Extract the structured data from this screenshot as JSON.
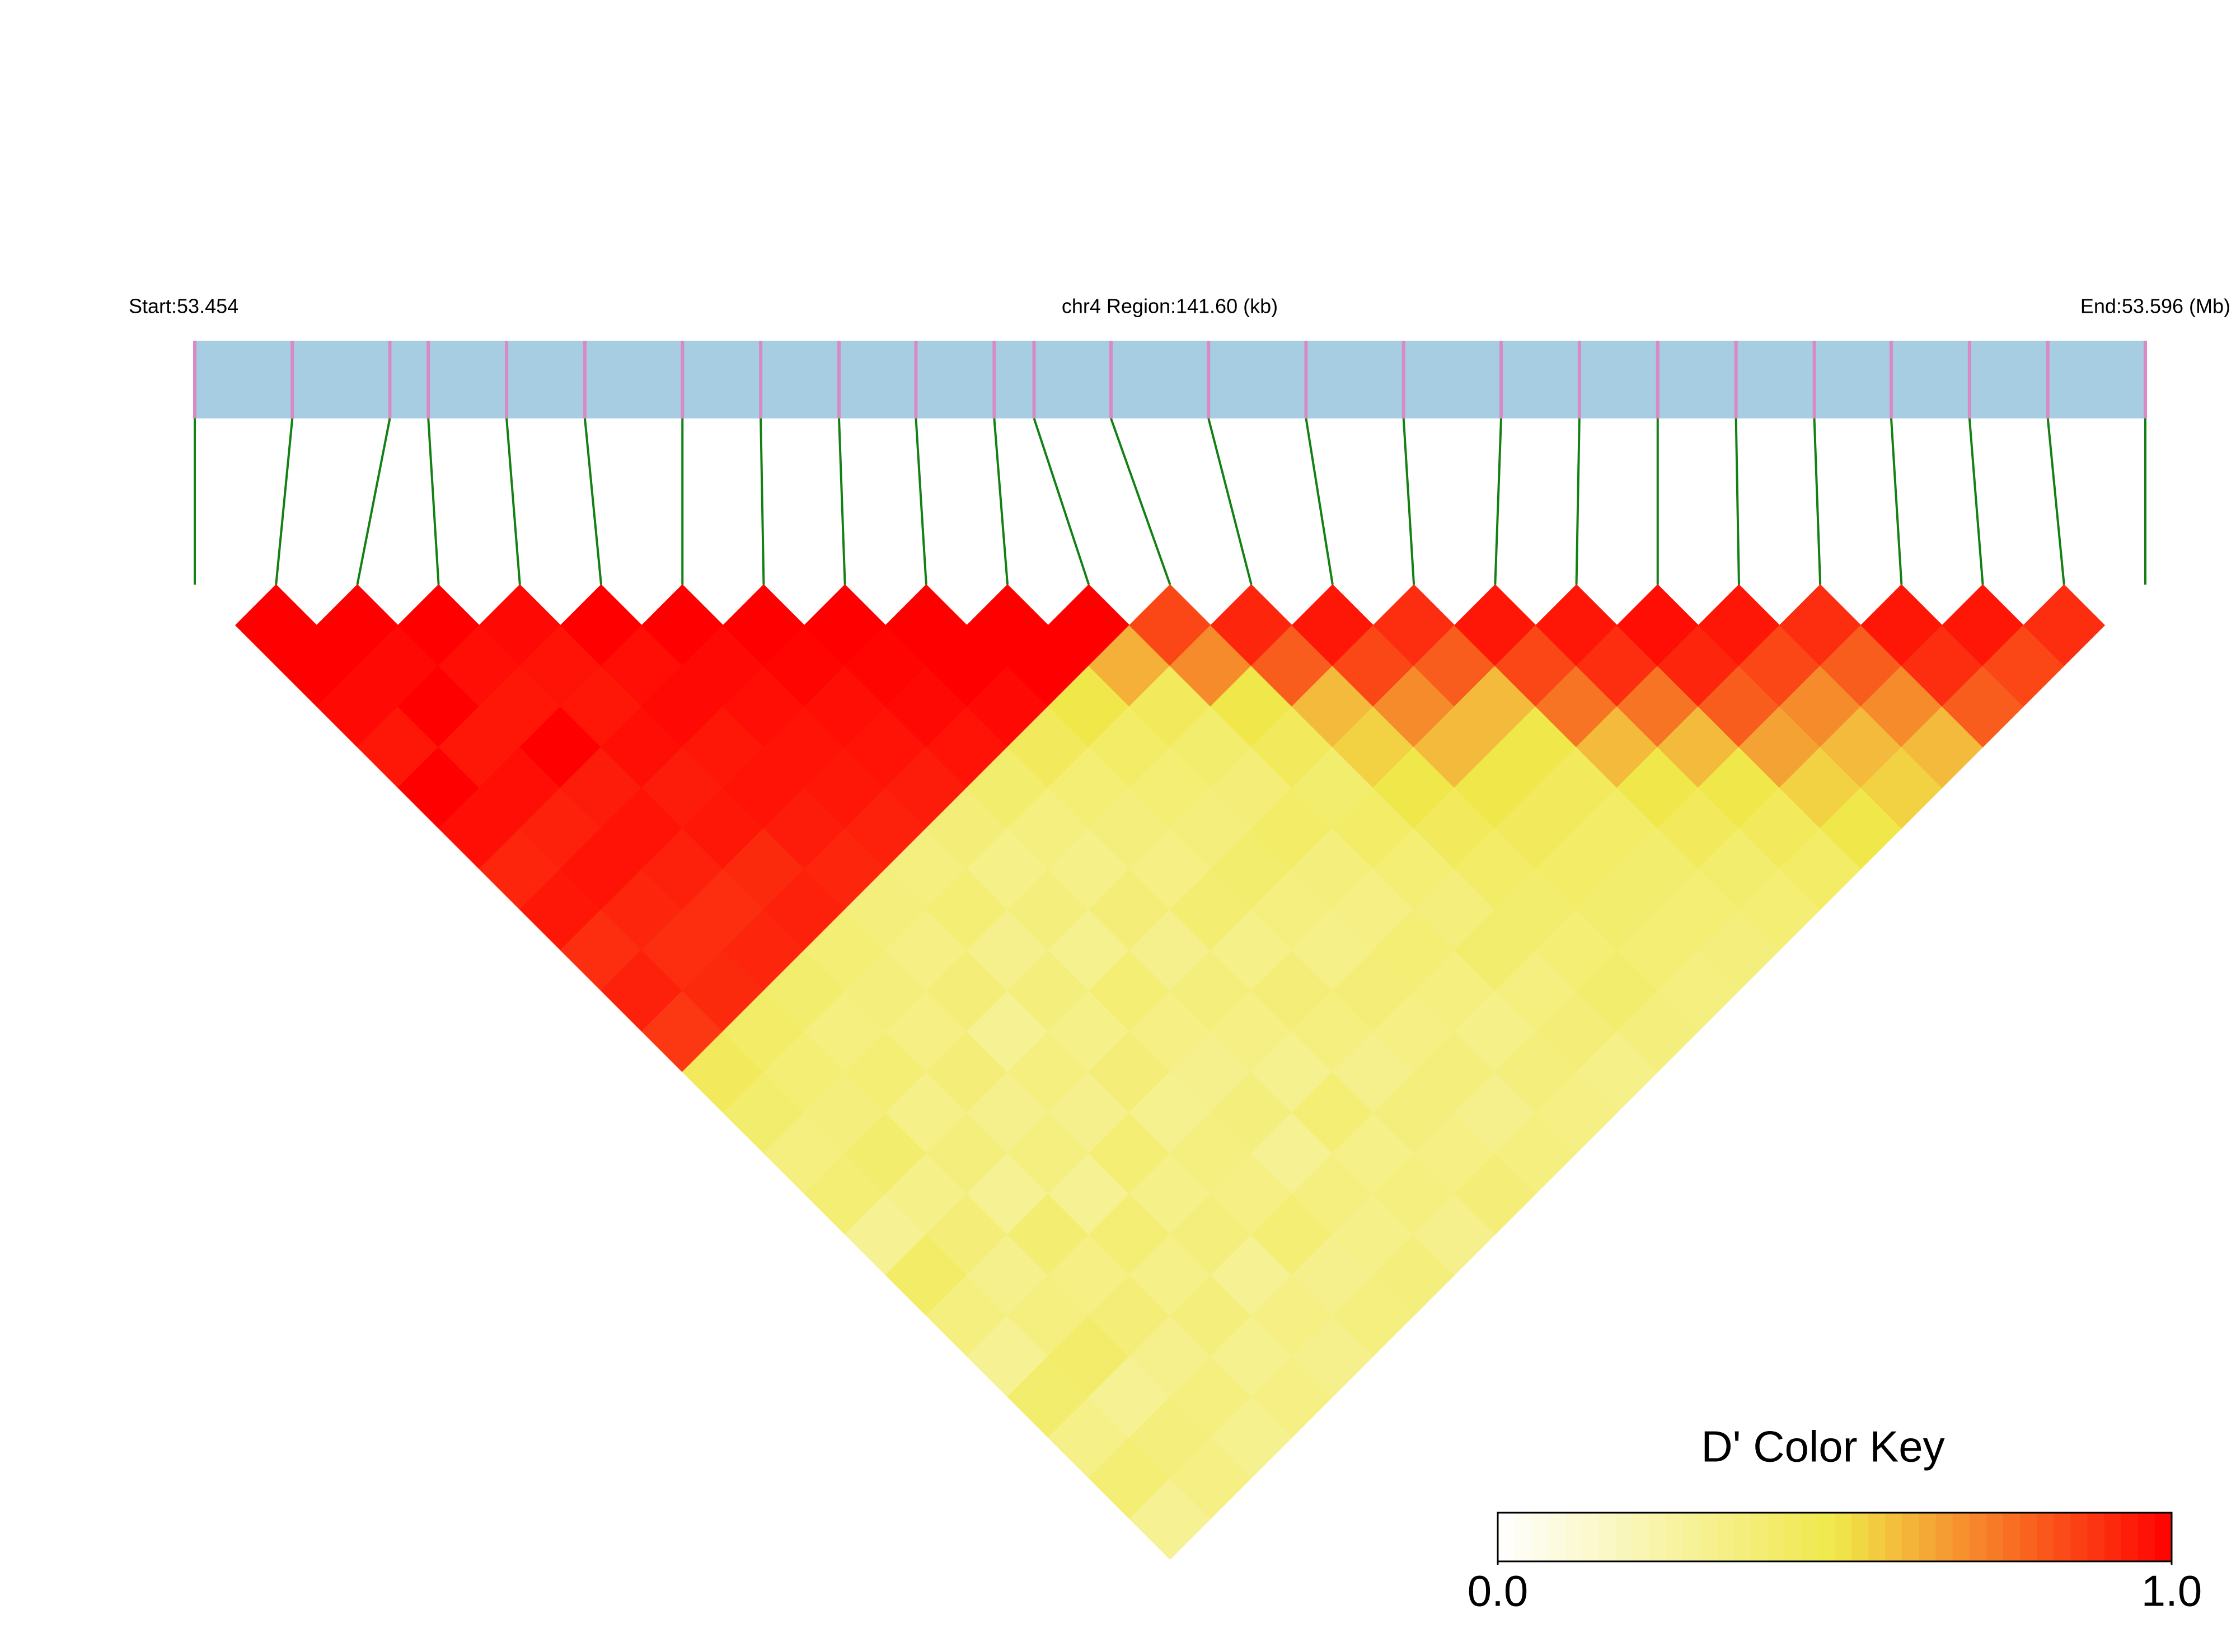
{
  "chart_data": {
    "type": "heatmap",
    "start_label": "Start:53.454",
    "region_label": "chr4 Region:141.60 (kb)",
    "end_label": "End:53.596 (Mb)",
    "bin_edges_mb": [
      53.454,
      53.4611,
      53.4682,
      53.471,
      53.4767,
      53.4824,
      53.4895,
      53.4952,
      53.5009,
      53.5065,
      53.5122,
      53.5151,
      53.5207,
      53.5278,
      53.5349,
      53.542,
      53.5491,
      53.5548,
      53.5605,
      53.5662,
      53.5719,
      53.5775,
      53.5832,
      53.5889,
      53.596
    ],
    "matrix": [
      [
        1,
        1,
        0.98,
        0.95,
        1,
        0.97,
        0.92,
        0.95,
        0.9,
        0.93,
        0.88,
        0.45,
        0.4,
        0.35,
        0.38,
        0.3,
        0.42,
        0.35,
        0.3,
        0.4,
        0.33,
        0.38,
        0.3
      ],
      [
        1,
        0.98,
        1,
        0.95,
        0.97,
        0.93,
        0.96,
        0.92,
        0.9,
        0.91,
        0.42,
        0.38,
        0.36,
        0.4,
        0.33,
        0.37,
        0.32,
        0.35,
        0.41,
        0.3,
        0.36,
        0.34
      ],
      [
        1,
        0.97,
        0.95,
        1,
        0.94,
        0.96,
        0.93,
        0.9,
        0.92,
        0.4,
        0.35,
        0.38,
        0.33,
        0.36,
        0.3,
        0.39,
        0.34,
        0.37,
        0.32,
        0.35,
        0.31
      ],
      [
        0.98,
        0.96,
        0.95,
        0.97,
        0.94,
        0.95,
        0.91,
        0.93,
        0.38,
        0.36,
        0.34,
        0.37,
        0.32,
        0.35,
        0.3,
        0.38,
        0.33,
        0.36,
        0.31,
        0.34
      ],
      [
        1,
        0.97,
        0.98,
        0.95,
        0.96,
        0.94,
        0.92,
        0.36,
        0.34,
        0.37,
        0.3,
        0.35,
        0.32,
        0.38,
        0.33,
        0.36,
        0.3,
        0.34,
        0.32
      ],
      [
        1,
        0.98,
        0.97,
        0.96,
        0.95,
        0.93,
        0.35,
        0.38,
        0.32,
        0.36,
        0.33,
        0.37,
        0.31,
        0.35,
        0.34,
        0.38,
        0.32,
        0.35
      ],
      [
        1,
        0.99,
        0.97,
        0.96,
        0.94,
        0.37,
        0.33,
        0.36,
        0.31,
        0.38,
        0.34,
        0.32,
        0.36,
        0.3,
        0.35,
        0.33,
        0.36
      ],
      [
        1,
        0.99,
        0.98,
        0.96,
        0.4,
        0.35,
        0.33,
        0.37,
        0.32,
        0.36,
        0.34,
        0.31,
        0.38,
        0.33,
        0.35,
        0.32
      ],
      [
        1,
        1,
        0.98,
        0.45,
        0.38,
        0.36,
        0.34,
        0.39,
        0.33,
        0.37,
        0.35,
        0.32,
        0.36,
        0.34,
        0.37
      ],
      [
        1,
        1,
        0.5,
        0.42,
        0.38,
        0.36,
        0.4,
        0.35,
        0.33,
        0.37,
        0.34,
        0.36,
        0.32,
        0.35
      ],
      [
        1,
        0.62,
        0.45,
        0.4,
        0.37,
        0.42,
        0.36,
        0.34,
        0.38,
        0.35,
        0.33,
        0.36,
        0.34
      ],
      [
        0.85,
        0.7,
        0.5,
        0.45,
        0.4,
        0.42,
        0.38,
        0.36,
        0.4,
        0.35,
        0.37,
        0.33
      ],
      [
        0.92,
        0.8,
        0.6,
        0.55,
        0.5,
        0.45,
        0.42,
        0.4,
        0.38,
        0.4,
        0.36
      ],
      [
        0.95,
        0.85,
        0.7,
        0.6,
        0.5,
        0.45,
        0.42,
        0.4,
        0.38,
        0.35
      ],
      [
        0.9,
        0.8,
        0.6,
        0.5,
        0.45,
        0.42,
        0.4,
        0.38,
        0.36
      ],
      [
        0.95,
        0.85,
        0.75,
        0.6,
        0.5,
        0.45,
        0.4,
        0.38
      ],
      [
        0.95,
        0.9,
        0.75,
        0.6,
        0.5,
        0.45,
        0.42
      ],
      [
        0.97,
        0.92,
        0.8,
        0.65,
        0.55,
        0.5
      ],
      [
        0.95,
        0.85,
        0.7,
        0.6,
        0.55
      ],
      [
        0.9,
        0.8,
        0.7,
        0.6
      ],
      [
        0.95,
        0.9,
        0.8
      ],
      [
        0.95,
        0.85
      ],
      [
        0.9
      ]
    ],
    "colorkey": {
      "title": "D' Color Key",
      "range": [
        0,
        1
      ],
      "ticks": [
        {
          "value": 0,
          "label": "0.0"
        },
        {
          "value": 1,
          "label": "1.0"
        }
      ],
      "colors": [
        "#ffffff",
        "#f0e84a",
        "#ff0000"
      ]
    },
    "bar_color": "#a6cde2",
    "marker_color": "#d98ac4",
    "link_color": "#128012"
  }
}
